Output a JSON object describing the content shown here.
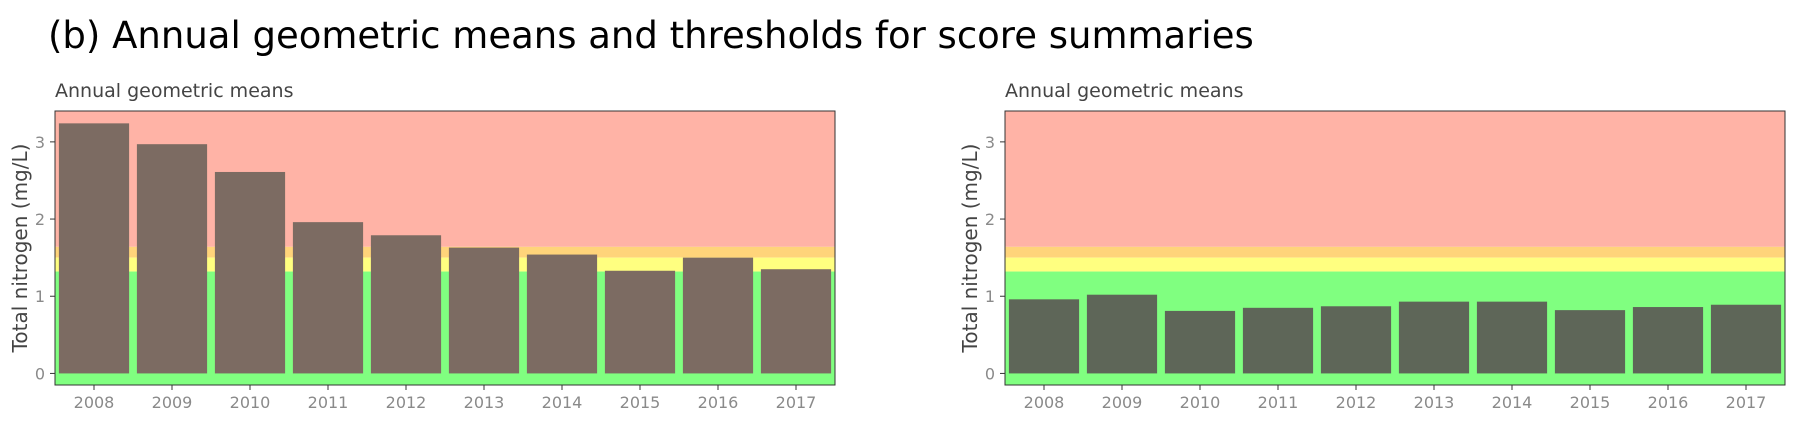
{
  "title": "(b) Annual geometric means and thresholds for score summaries",
  "colors": {
    "red_band": "#ffb3a6",
    "orange_band": "#ffd47a",
    "yellow_band": "#ffff80",
    "green_band": "#80ff80",
    "bar": "#5e6658",
    "bar_high": "#7c6b62"
  },
  "thresholds": {
    "red_above": 1.64,
    "orange_above": 1.5,
    "yellow_above": 1.32
  },
  "chart_data": [
    {
      "type": "bar",
      "title": "Annual geometric means",
      "xlabel": "",
      "ylabel": "Total nitrogen (mg/L)",
      "ylim": [
        -0.15,
        3.4
      ],
      "yticks": [
        0,
        1,
        2,
        3
      ],
      "categories": [
        "2008",
        "2009",
        "2010",
        "2011",
        "2012",
        "2013",
        "2014",
        "2015",
        "2016",
        "2017"
      ],
      "values": [
        3.24,
        2.97,
        2.61,
        1.96,
        1.79,
        1.63,
        1.54,
        1.33,
        1.5,
        1.35
      ]
    },
    {
      "type": "bar",
      "title": "Annual geometric means",
      "xlabel": "",
      "ylabel": "Total nitrogen (mg/L)",
      "ylim": [
        -0.15,
        3.4
      ],
      "yticks": [
        0,
        1,
        2,
        3
      ],
      "categories": [
        "2008",
        "2009",
        "2010",
        "2011",
        "2012",
        "2013",
        "2014",
        "2015",
        "2016",
        "2017"
      ],
      "values": [
        0.96,
        1.02,
        0.81,
        0.85,
        0.87,
        0.93,
        0.93,
        0.82,
        0.86,
        0.89
      ]
    }
  ]
}
